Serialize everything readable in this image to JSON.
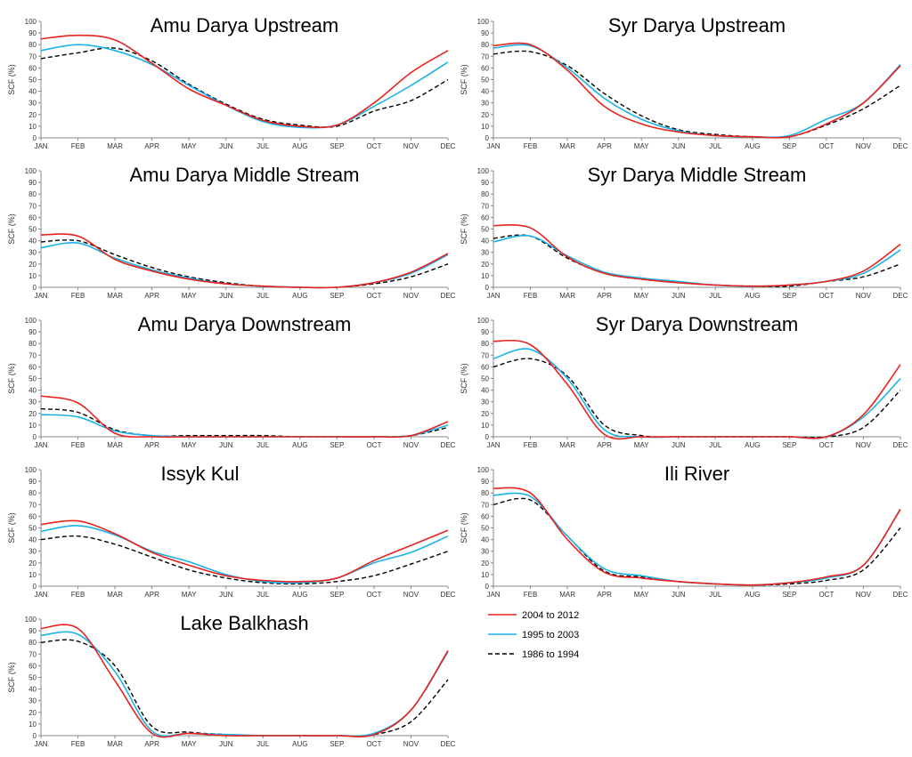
{
  "legend": [
    {
      "name": "2004 to 2012",
      "color": "#e8231f",
      "style": "solid"
    },
    {
      "name": "1995 to 2003",
      "color": "#1ab2e8",
      "style": "solid"
    },
    {
      "name": "1986 to 1994",
      "color": "#000000",
      "style": "dashed"
    }
  ],
  "chart_data": [
    {
      "type": "line",
      "title": "Amu Darya Upstream",
      "ylabel": "SCF (%)",
      "ylim": [
        0,
        100
      ],
      "yticks": [
        0,
        10,
        20,
        30,
        40,
        50,
        60,
        70,
        80,
        90,
        100
      ],
      "categories": [
        "JAN",
        "FEB",
        "MAR",
        "APR",
        "MAY",
        "JUN",
        "JUL",
        "AUG",
        "SEP",
        "OCT",
        "NOV",
        "DEC"
      ],
      "series": [
        {
          "name": "2004 to 2012",
          "values": [
            85,
            88,
            84,
            64,
            42,
            28,
            15,
            10,
            11,
            30,
            56,
            75
          ]
        },
        {
          "name": "1995 to 2003",
          "values": [
            75,
            80,
            75,
            63,
            45,
            28,
            14,
            9,
            11,
            27,
            45,
            65
          ]
        },
        {
          "name": "1986 to 1994",
          "values": [
            68,
            73,
            77,
            66,
            46,
            29,
            16,
            11,
            10,
            23,
            32,
            50
          ]
        }
      ]
    },
    {
      "type": "line",
      "title": "Syr Darya Upstream",
      "ylabel": "SCF (%)",
      "ylim": [
        0,
        100
      ],
      "yticks": [
        0,
        10,
        20,
        30,
        40,
        50,
        60,
        70,
        80,
        90,
        100
      ],
      "categories": [
        "JAN",
        "FEB",
        "MAR",
        "APR",
        "MAY",
        "JUN",
        "JUL",
        "AUG",
        "SEP",
        "OCT",
        "NOV",
        "DEC"
      ],
      "series": [
        {
          "name": "2004 to 2012",
          "values": [
            79,
            80,
            58,
            27,
            12,
            5,
            2,
            1,
            1,
            12,
            30,
            62
          ]
        },
        {
          "name": "1995 to 2003",
          "values": [
            77,
            79,
            60,
            34,
            16,
            6,
            2,
            1,
            2,
            16,
            30,
            63
          ]
        },
        {
          "name": "1986 to 1994",
          "values": [
            72,
            74,
            62,
            38,
            19,
            7,
            3,
            1,
            1,
            11,
            25,
            45
          ]
        }
      ]
    },
    {
      "type": "line",
      "title": "Amu Darya Middle Stream",
      "ylabel": "SCF (%)",
      "ylim": [
        0,
        100
      ],
      "yticks": [
        0,
        10,
        20,
        30,
        40,
        50,
        60,
        70,
        80,
        90,
        100
      ],
      "categories": [
        "JAN",
        "FEB",
        "MAR",
        "APR",
        "MAY",
        "JUN",
        "JUL",
        "AUG",
        "SEP",
        "OCT",
        "NOV",
        "DEC"
      ],
      "series": [
        {
          "name": "2004 to 2012",
          "values": [
            45,
            44,
            24,
            14,
            7,
            3,
            1,
            0,
            0,
            4,
            13,
            29
          ]
        },
        {
          "name": "1995 to 2003",
          "values": [
            34,
            38,
            25,
            15,
            8,
            3,
            1,
            0,
            0,
            4,
            12,
            28
          ]
        },
        {
          "name": "1986 to 1994",
          "values": [
            39,
            40,
            28,
            17,
            9,
            4,
            1,
            0,
            0,
            3,
            9,
            20
          ]
        }
      ]
    },
    {
      "type": "line",
      "title": "Syr Darya Middle Stream",
      "ylabel": "SCF (%)",
      "ylim": [
        0,
        100
      ],
      "yticks": [
        0,
        10,
        20,
        30,
        40,
        50,
        60,
        70,
        80,
        90,
        100
      ],
      "categories": [
        "JAN",
        "FEB",
        "MAR",
        "APR",
        "MAY",
        "JUN",
        "JUL",
        "AUG",
        "SEP",
        "OCT",
        "NOV",
        "DEC"
      ],
      "series": [
        {
          "name": "2004 to 2012",
          "values": [
            53,
            51,
            26,
            12,
            7,
            4,
            2,
            1,
            2,
            5,
            14,
            37
          ]
        },
        {
          "name": "1995 to 2003",
          "values": [
            39,
            44,
            27,
            13,
            8,
            5,
            2,
            1,
            2,
            5,
            12,
            32
          ]
        },
        {
          "name": "1986 to 1994",
          "values": [
            42,
            44,
            25,
            12,
            7,
            4,
            2,
            1,
            1,
            5,
            9,
            20
          ]
        }
      ]
    },
    {
      "type": "line",
      "title": "Amu Darya Downstream",
      "ylabel": "SCF (%)",
      "ylim": [
        0,
        100
      ],
      "yticks": [
        0,
        10,
        20,
        30,
        40,
        50,
        60,
        70,
        80,
        90,
        100
      ],
      "categories": [
        "JAN",
        "FEB",
        "MAR",
        "APR",
        "MAY",
        "JUN",
        "JUL",
        "AUG",
        "SEP",
        "OCT",
        "NOV",
        "DEC"
      ],
      "series": [
        {
          "name": "2004 to 2012",
          "values": [
            35,
            29,
            3,
            0,
            0,
            0,
            0,
            0,
            0,
            0,
            1,
            13
          ]
        },
        {
          "name": "1995 to 2003",
          "values": [
            19,
            17,
            5,
            1,
            0,
            0,
            0,
            0,
            0,
            0,
            1,
            10
          ]
        },
        {
          "name": "1986 to 1994",
          "values": [
            24,
            21,
            6,
            1,
            1,
            1,
            1,
            0,
            0,
            0,
            1,
            8
          ]
        }
      ]
    },
    {
      "type": "line",
      "title": "Syr Darya Downstream",
      "ylabel": "SCF (%)",
      "ylim": [
        0,
        100
      ],
      "yticks": [
        0,
        10,
        20,
        30,
        40,
        50,
        60,
        70,
        80,
        90,
        100
      ],
      "categories": [
        "JAN",
        "FEB",
        "MAR",
        "APR",
        "MAY",
        "JUN",
        "JUL",
        "AUG",
        "SEP",
        "OCT",
        "NOV",
        "DEC"
      ],
      "series": [
        {
          "name": "2004 to 2012",
          "values": [
            82,
            79,
            45,
            2,
            0,
            0,
            0,
            0,
            0,
            0,
            19,
            62
          ]
        },
        {
          "name": "1995 to 2003",
          "values": [
            67,
            75,
            50,
            6,
            0,
            0,
            0,
            0,
            0,
            0,
            17,
            50
          ]
        },
        {
          "name": "1986 to 1994",
          "values": [
            60,
            67,
            52,
            10,
            1,
            0,
            0,
            0,
            0,
            0,
            8,
            40
          ]
        }
      ]
    },
    {
      "type": "line",
      "title": "Issyk Kul",
      "ylabel": "SCF (%)",
      "ylim": [
        0,
        100
      ],
      "yticks": [
        0,
        10,
        20,
        30,
        40,
        50,
        60,
        70,
        80,
        90,
        100
      ],
      "categories": [
        "JAN",
        "FEB",
        "MAR",
        "APR",
        "MAY",
        "JUN",
        "JUL",
        "AUG",
        "SEP",
        "OCT",
        "NOV",
        "DEC"
      ],
      "series": [
        {
          "name": "2004 to 2012",
          "values": [
            53,
            56,
            45,
            29,
            18,
            9,
            5,
            4,
            7,
            22,
            35,
            48
          ]
        },
        {
          "name": "1995 to 2003",
          "values": [
            47,
            52,
            44,
            30,
            21,
            10,
            4,
            3,
            7,
            20,
            29,
            43
          ]
        },
        {
          "name": "1986 to 1994",
          "values": [
            40,
            43,
            36,
            25,
            14,
            7,
            3,
            2,
            4,
            9,
            19,
            30
          ]
        }
      ]
    },
    {
      "type": "line",
      "title": "Ili River",
      "ylabel": "SCF (%)",
      "ylim": [
        0,
        100
      ],
      "yticks": [
        0,
        10,
        20,
        30,
        40,
        50,
        60,
        70,
        80,
        90,
        100
      ],
      "categories": [
        "JAN",
        "FEB",
        "MAR",
        "APR",
        "MAY",
        "JUN",
        "JUL",
        "AUG",
        "SEP",
        "OCT",
        "NOV",
        "DEC"
      ],
      "series": [
        {
          "name": "2004 to 2012",
          "values": [
            84,
            80,
            40,
            12,
            7,
            4,
            2,
            1,
            3,
            8,
            18,
            66
          ]
        },
        {
          "name": "1995 to 2003",
          "values": [
            78,
            77,
            43,
            15,
            9,
            4,
            2,
            1,
            3,
            7,
            18,
            66
          ]
        },
        {
          "name": "1986 to 1994",
          "values": [
            70,
            74,
            43,
            13,
            8,
            4,
            2,
            1,
            2,
            5,
            14,
            50
          ]
        }
      ]
    },
    {
      "type": "line",
      "title": "Lake Balkhash",
      "ylabel": "SCF (%)",
      "ylim": [
        0,
        100
      ],
      "yticks": [
        0,
        10,
        20,
        30,
        40,
        50,
        60,
        70,
        80,
        90,
        100
      ],
      "categories": [
        "JAN",
        "FEB",
        "MAR",
        "APR",
        "MAY",
        "JUN",
        "JUL",
        "AUG",
        "SEP",
        "OCT",
        "NOV",
        "DEC"
      ],
      "series": [
        {
          "name": "2004 to 2012",
          "values": [
            92,
            92,
            47,
            2,
            2,
            0,
            0,
            0,
            0,
            1,
            22,
            73
          ]
        },
        {
          "name": "1995 to 2003",
          "values": [
            86,
            87,
            55,
            4,
            2,
            1,
            0,
            0,
            0,
            2,
            22,
            72
          ]
        },
        {
          "name": "1986 to 1994",
          "values": [
            80,
            81,
            60,
            8,
            3,
            1,
            0,
            0,
            0,
            1,
            12,
            48
          ]
        }
      ]
    }
  ]
}
